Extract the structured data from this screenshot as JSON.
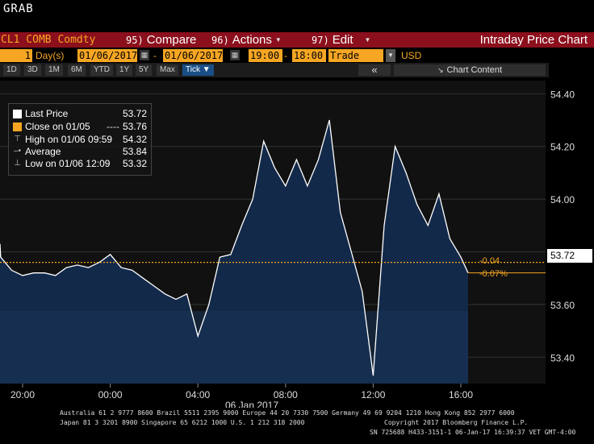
{
  "window": {
    "title": "GRAB"
  },
  "toolbar": {
    "ticker": "CL1 COMB Comdty",
    "compare": {
      "num": "95)",
      "label": "Compare"
    },
    "actions": {
      "num": "96)",
      "label": "Actions"
    },
    "edit": {
      "num": "97)",
      "label": "Edit"
    },
    "chart_title": "Intraday Price Chart"
  },
  "params": {
    "period_value": "1",
    "period_unit": "Day(s)",
    "start_date": "01/06/2017",
    "end_date": "01/06/2017",
    "start_time": "19:00",
    "end_time": "18:00",
    "field": "Trade",
    "currency": "USD"
  },
  "ranges": [
    "1D",
    "3D",
    "1M",
    "6M",
    "YTD",
    "1Y",
    "5Y",
    "Max"
  ],
  "range_selected": "Tick ▼",
  "chart_content_label": "Chart Content",
  "legend": {
    "last_price": {
      "label": "Last Price",
      "value": "53.72"
    },
    "close": {
      "label": "Close on 01/05",
      "value": "53.76"
    },
    "high": {
      "label": "High on 01/06 09:59",
      "value": "54.32"
    },
    "average": {
      "label": "Average",
      "value": "53.84"
    },
    "low": {
      "label": "Low on 01/06 12:09",
      "value": "53.32"
    }
  },
  "last_price_tag": "53.72",
  "change_abs": "-0.04",
  "change_pct": "-0.07%",
  "colors": {
    "accent": "#f6a623",
    "toolbar": "#8b0f1c",
    "area": "#13294a",
    "line": "#ffffff",
    "selected": "#1a4f86"
  },
  "chart_data": {
    "type": "area",
    "x_tick_labels": [
      "20:00",
      "00:00",
      "04:00",
      "08:00",
      "12:00",
      "16:00"
    ],
    "date_label": "06 Jan 2017",
    "y_tick_labels": [
      "53.40",
      "53.60",
      "53.80",
      "54.00",
      "54.20",
      "54.40"
    ],
    "ylim": [
      53.3,
      54.45
    ],
    "close_reference": 53.76,
    "series": [
      {
        "x": [
          "18:00",
          "18:30",
          "19:00",
          "19:30",
          "20:00",
          "20:30",
          "21:00",
          "21:30",
          "22:00",
          "22:30",
          "23:00",
          "23:30",
          "00:00",
          "00:30",
          "01:00",
          "01:30",
          "02:00",
          "02:30",
          "03:00",
          "03:30",
          "04:00",
          "04:30",
          "05:00",
          "05:30",
          "06:00",
          "06:30",
          "07:00",
          "07:30",
          "08:00",
          "08:30",
          "09:00",
          "09:30",
          "10:00",
          "10:30",
          "11:00",
          "11:30",
          "12:00",
          "12:30",
          "13:00",
          "13:30",
          "14:00",
          "14:30",
          "15:00",
          "15:30",
          "16:00",
          "16:20"
        ],
        "values": [
          53.78,
          53.83,
          53.78,
          53.73,
          53.71,
          53.72,
          53.72,
          53.71,
          53.74,
          53.75,
          53.74,
          53.76,
          53.79,
          53.74,
          53.73,
          53.7,
          53.67,
          53.64,
          53.62,
          53.64,
          53.48,
          53.6,
          53.78,
          53.79,
          53.9,
          54.0,
          54.22,
          54.12,
          54.05,
          54.15,
          54.05,
          54.15,
          54.3,
          53.95,
          53.8,
          53.65,
          53.33,
          53.9,
          54.2,
          54.1,
          53.98,
          53.9,
          54.02,
          53.85,
          53.78,
          53.72
        ]
      }
    ]
  },
  "footer": {
    "line1": "Australia 61 2 9777 8600 Brazil 5511 2395 9000 Europe 44 20 7330 7500 Germany 49 69 9204 1210 Hong Kong 852 2977 6000",
    "line2a": "Japan 81 3 3201 8900       Singapore 65 6212 1000       U.S. 1 212 318 2000",
    "line2b": "Copyright 2017 Bloomberg Finance L.P.",
    "line3": "SN 725688 H433-3151-1 06-Jan-17 16:39:37 VET  GMT-4:00"
  }
}
